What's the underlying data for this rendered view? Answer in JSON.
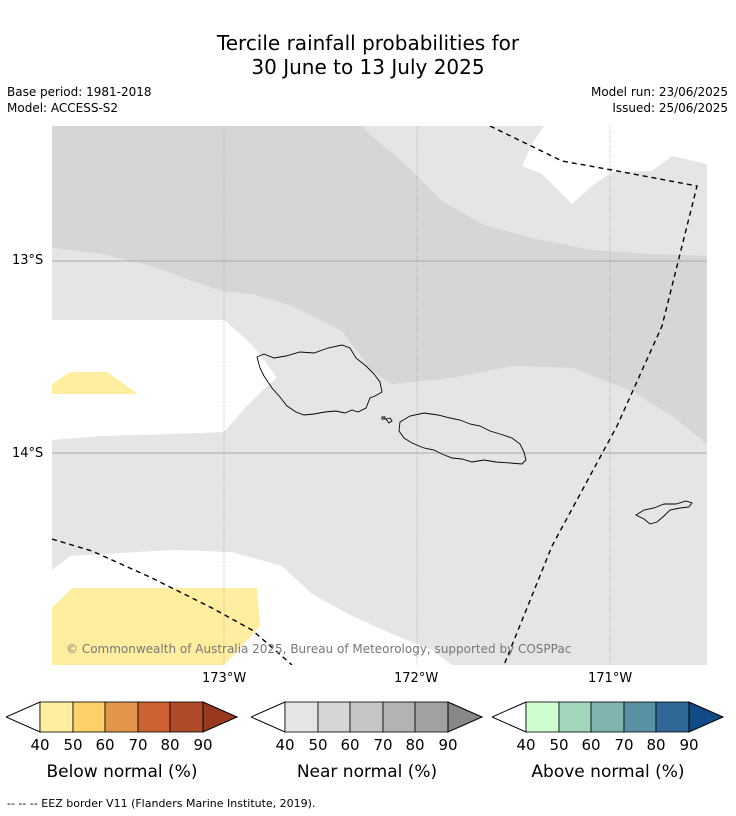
{
  "title": {
    "line1": "Tercile rainfall probabilities for",
    "line2": "30 June to 13 July 2025"
  },
  "meta": {
    "base_period": "Base period: 1981-2018",
    "model": "Model: ACCESS-S2",
    "model_run": "Model run: 23/06/2025",
    "issued": "Issued: 25/06/2025"
  },
  "map": {
    "lat_labels": [
      "13°S",
      "14°S"
    ],
    "lon_labels": [
      "173°W",
      "172°W",
      "171°W"
    ],
    "copyright": "© Commonwealth of Australia 2025, Bureau of Meteorology, supported by COSPPac"
  },
  "colorbars": [
    {
      "name": "below",
      "label": "Below normal (%)",
      "ticks": [
        "40",
        "50",
        "60",
        "70",
        "80",
        "90"
      ],
      "colors": [
        "#ffffff",
        "#ffeda0",
        "#fed16a",
        "#e3954a",
        "#cd6131",
        "#b04b2a",
        "#98381f"
      ]
    },
    {
      "name": "near",
      "label": "Near normal (%)",
      "ticks": [
        "40",
        "50",
        "60",
        "70",
        "80",
        "90"
      ],
      "colors": [
        "#ffffff",
        "#e5e5e5",
        "#d6d6d6",
        "#c6c6c6",
        "#b3b3b3",
        "#a1a1a1",
        "#878787"
      ]
    },
    {
      "name": "above",
      "label": "Above normal (%)",
      "ticks": [
        "40",
        "50",
        "60",
        "70",
        "80",
        "90"
      ],
      "colors": [
        "#ffffff",
        "#ccfcd0",
        "#a2d7bc",
        "#7fb3b0",
        "#5991a2",
        "#306797",
        "#114b85"
      ]
    }
  ],
  "footnote": "--  --  -- EEZ border V11 (Flanders Marine Institute, 2019).",
  "colors": {
    "near_40_50": "#e5e5e5",
    "near_50_60": "#d6d6d6",
    "below_40_50": "#ffeda0",
    "gridline": "#999999"
  }
}
